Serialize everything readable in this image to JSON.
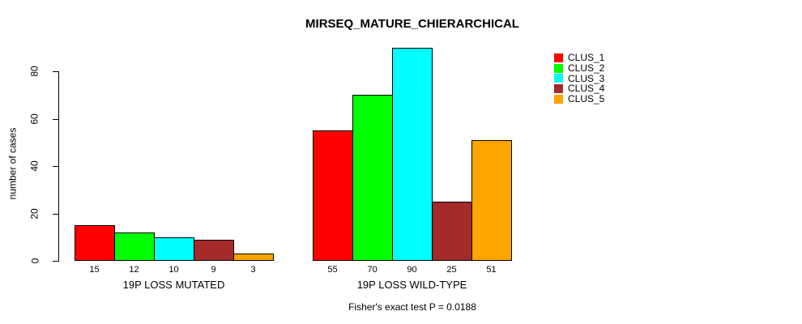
{
  "page": {
    "background": "#ffffff"
  },
  "chart_data": {
    "type": "bar",
    "title": "MIRSEQ_MATURE_CHIERARCHICAL",
    "xlabel": "",
    "ylabel": "number of cases",
    "ylim": [
      0,
      90
    ],
    "yticks": [
      0,
      20,
      40,
      60,
      80
    ],
    "grid": false,
    "legend_position": "top-right",
    "show_bar_values": true,
    "categories": [
      "19P LOSS MUTATED",
      "19P LOSS WILD-TYPE"
    ],
    "series": [
      {
        "name": "CLUS_1",
        "color": "#FF0000",
        "values": [
          15,
          55
        ]
      },
      {
        "name": "CLUS_2",
        "color": "#00FF00",
        "values": [
          12,
          70
        ]
      },
      {
        "name": "CLUS_3",
        "color": "#00FFFF",
        "values": [
          10,
          90
        ]
      },
      {
        "name": "CLUS_4",
        "color": "#A52A2A",
        "values": [
          9,
          25
        ]
      },
      {
        "name": "CLUS_5",
        "color": "#FFA500",
        "values": [
          3,
          51
        ]
      }
    ]
  },
  "annotation": {
    "fisher_text": "Fisher's exact test P = 0.0188"
  }
}
